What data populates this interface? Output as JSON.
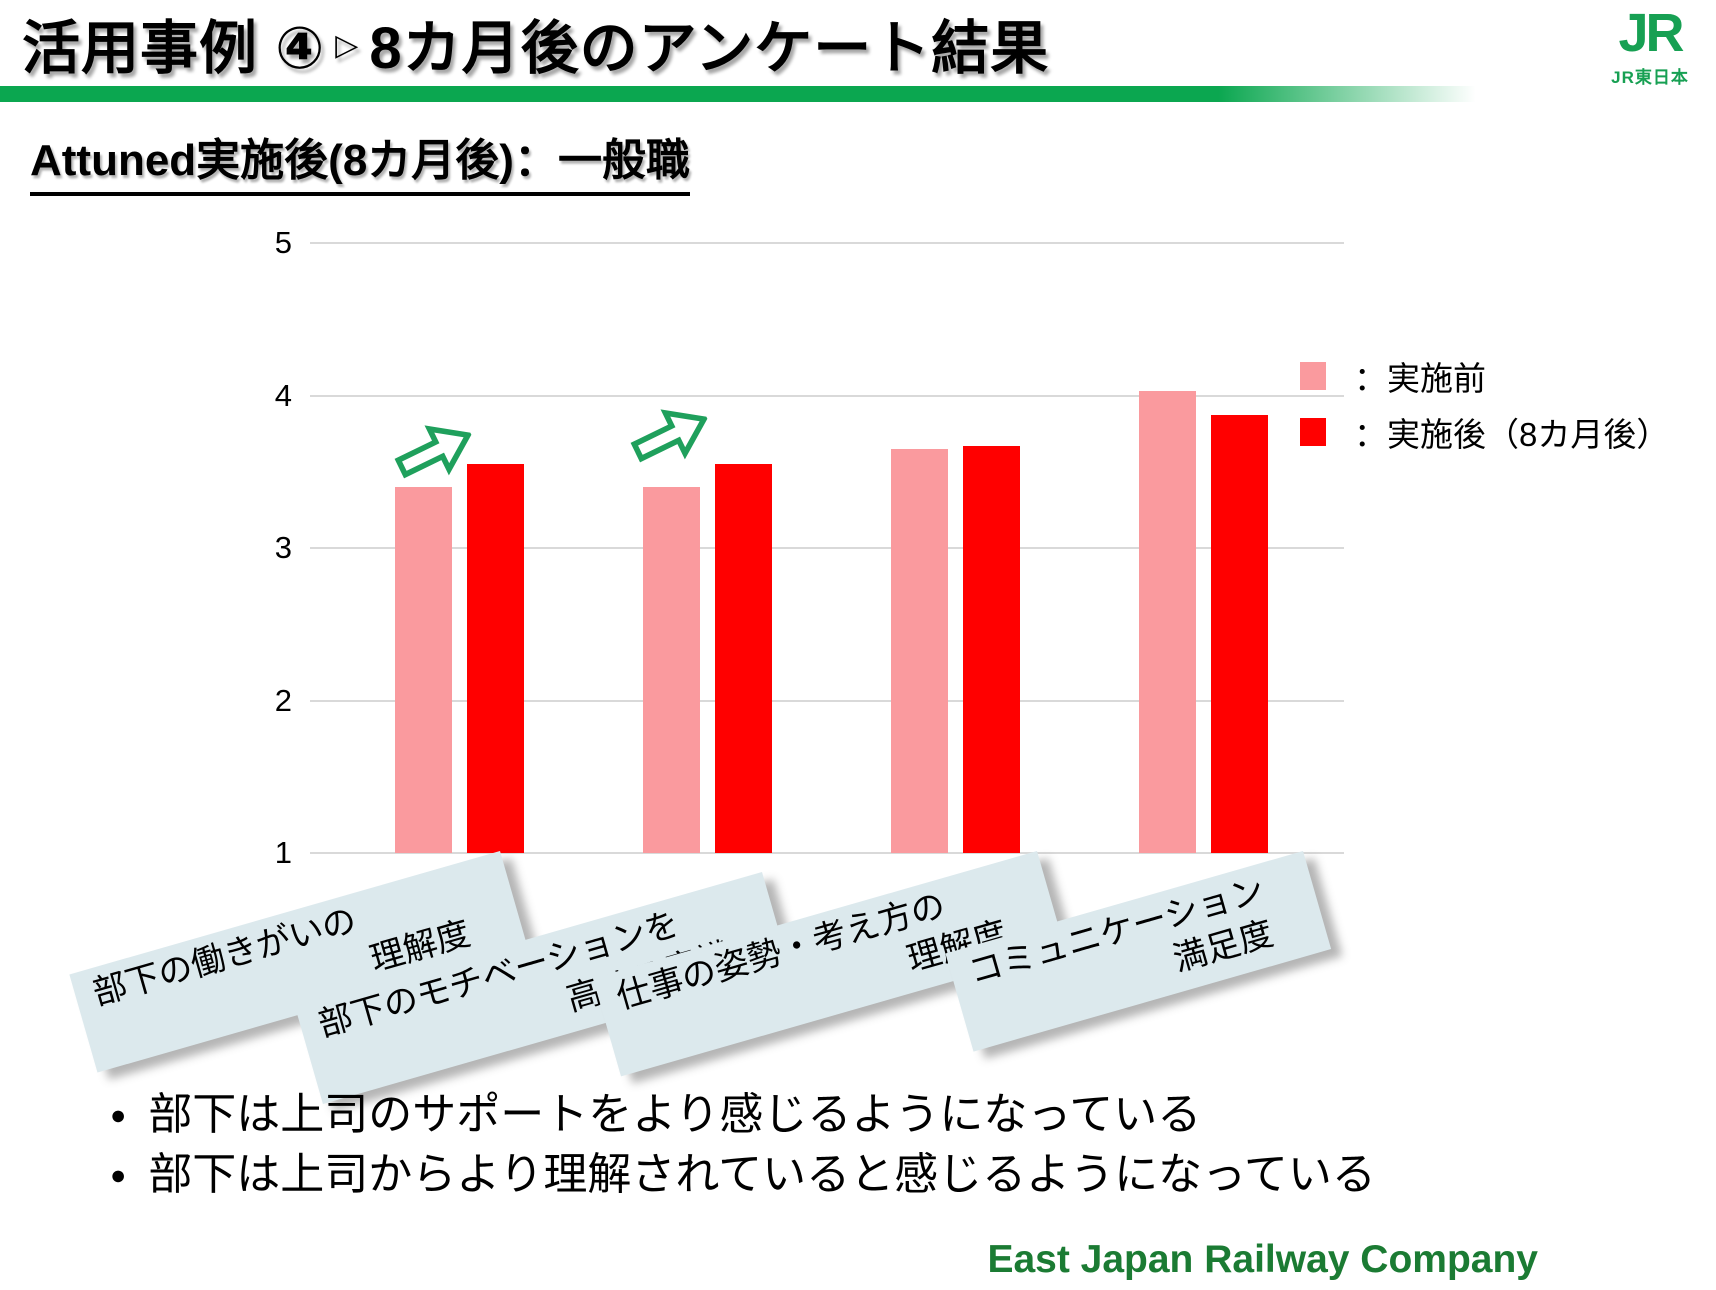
{
  "header": {
    "title_prefix": "活用事例 ④",
    "title_marker": "▷",
    "title_suffix": "8カ月後のアンケート結果",
    "logo_mark": "JR",
    "logo_name": "JR東日本"
  },
  "subtitle": "Attuned実施後(8カ月後)：一般職",
  "chart_data": {
    "type": "bar",
    "title": "Attuned実施後(8カ月後)：一般職",
    "categories": [
      "部下の働きがいの理解度",
      "部下のモチベーションを高める意識",
      "仕事の姿勢・考え方の理解度",
      "コミュニケーション満足度"
    ],
    "category_lines": [
      [
        "部下の働きがいの",
        "理解度"
      ],
      [
        "部下のモチベーションを",
        "高める意識"
      ],
      [
        "仕事の姿勢・考え方の",
        "理解度"
      ],
      [
        "コミュニケーション",
        "満足度"
      ]
    ],
    "series": [
      {
        "name": "実施前",
        "color": "#FA9A9E",
        "values": [
          3.4,
          3.4,
          3.65,
          4.03
        ]
      },
      {
        "name": "実施後（8カ月後）",
        "color": "#FF0000",
        "values": [
          3.55,
          3.55,
          3.67,
          3.87
        ]
      }
    ],
    "ylim": [
      1,
      5
    ],
    "yticks": [
      5,
      4,
      3,
      2,
      1
    ],
    "grid": true,
    "legend_position": "right",
    "arrow_categories": [
      0,
      1
    ],
    "arrow_color": "#1FA05C"
  },
  "legend": {
    "items": [
      {
        "label": "：実施前",
        "color": "#FA9A9E"
      },
      {
        "label": "：実施後（8カ月後）",
        "color": "#FF0000"
      }
    ]
  },
  "bullets": [
    "部下は上司のサポートをより感じるようになっている",
    "部下は上司からより理解されていると感じるようになっている"
  ],
  "footer": {
    "credit": "East Japan Railway Company"
  },
  "colors": {
    "header_bar_green": "#0BA750",
    "logo_green": "#17A053",
    "footer_green": "#1B7B33",
    "band_bg": "#DCE9ED",
    "gridline": "#D9D9D9",
    "text": "#000000"
  }
}
